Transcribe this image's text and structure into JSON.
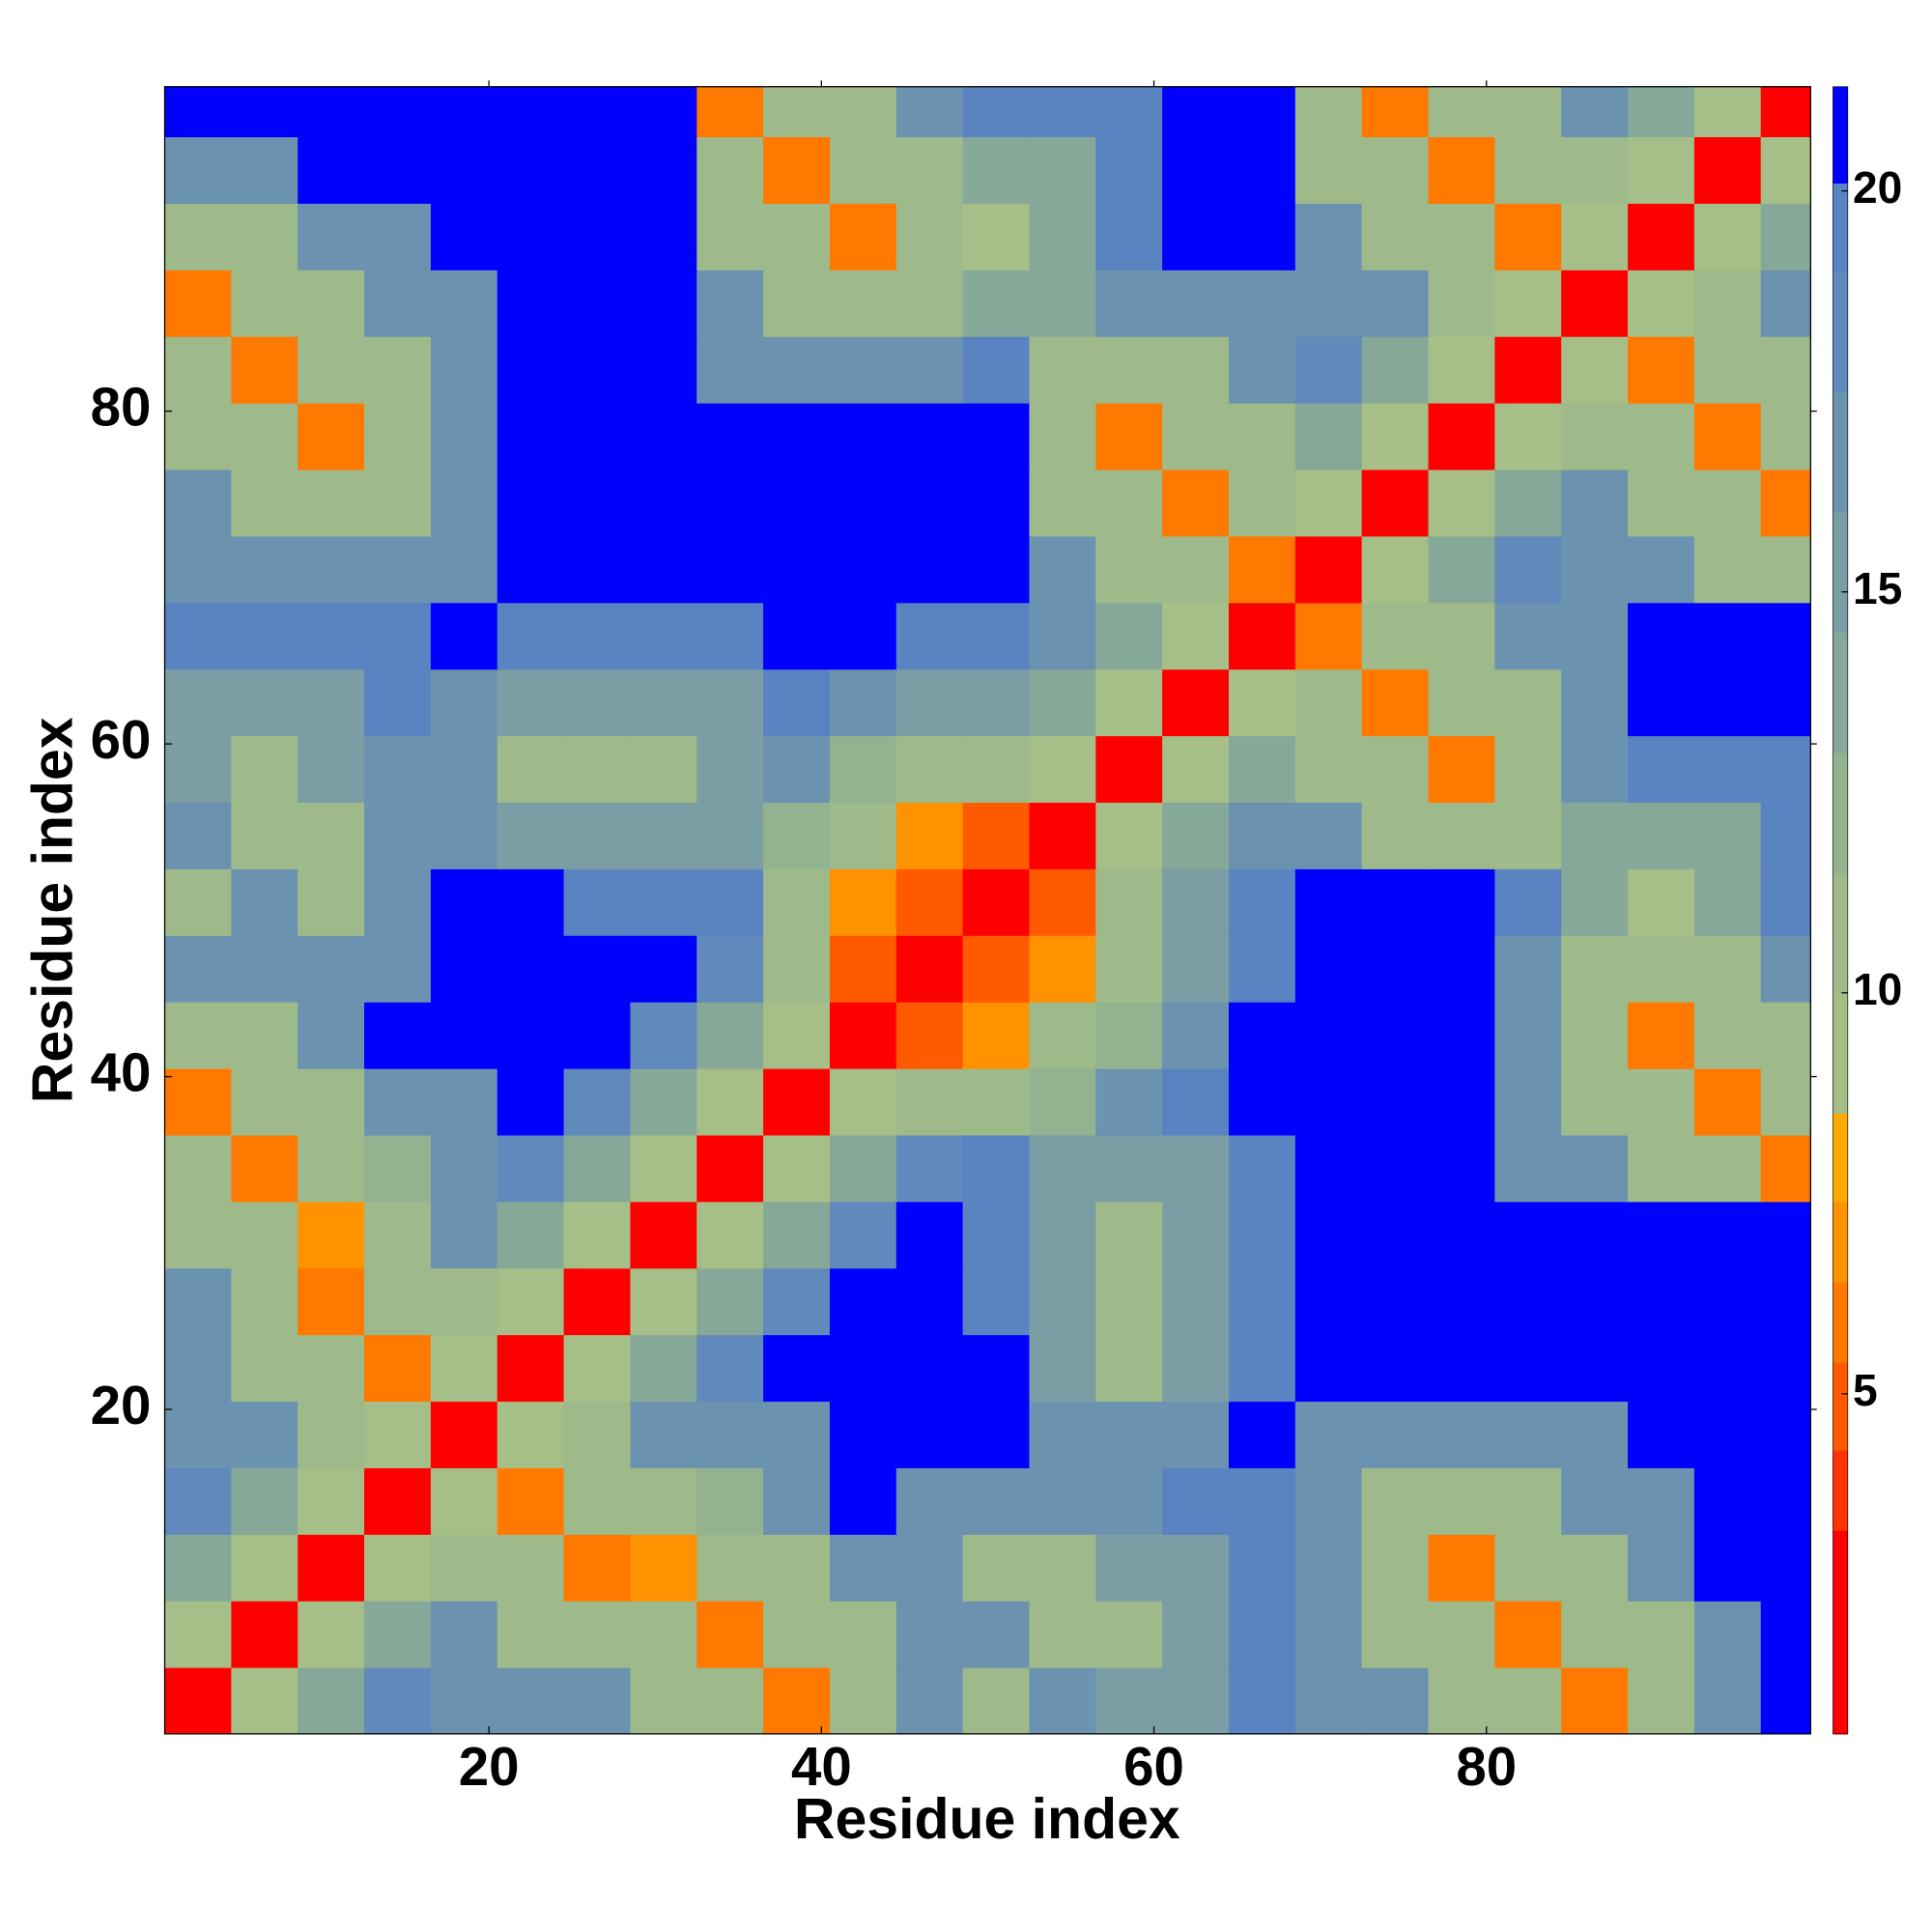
{
  "chart_data": {
    "type": "heatmap",
    "x_label": "Residue index",
    "y_label": "Residue index",
    "xlim": [
      0.5,
      99.5
    ],
    "ylim": [
      0.5,
      99.5
    ],
    "xticks": [
      20,
      40,
      60,
      80
    ],
    "yticks": [
      20,
      40,
      60,
      80
    ],
    "x_bins": [
      0.5,
      4.5,
      8.5,
      12.5,
      16.5,
      20.5,
      24.5,
      28.5,
      32.5,
      36.5,
      40.5,
      44.5,
      48.5,
      52.5,
      56.5,
      60.5,
      64.5,
      68.5,
      72.5,
      76.5,
      80.5,
      84.5,
      88.5,
      92.5,
      96.5,
      99.5
    ],
    "y_bins": [
      0.5,
      4.5,
      8.5,
      12.5,
      16.5,
      20.5,
      24.5,
      28.5,
      32.5,
      36.5,
      40.5,
      44.5,
      48.5,
      52.5,
      56.5,
      60.5,
      64.5,
      68.5,
      72.5,
      76.5,
      80.5,
      84.5,
      88.5,
      92.5,
      96.5,
      99.5
    ],
    "values": [
      [
        3,
        9,
        14,
        18,
        16,
        16,
        16,
        11,
        11,
        6,
        11,
        16,
        11,
        16,
        15,
        15,
        20,
        16,
        16,
        11,
        11,
        6,
        11,
        16,
        21
      ],
      [
        9,
        3,
        9,
        14,
        16,
        11,
        11,
        11,
        6,
        11,
        11,
        16,
        16,
        11,
        10,
        15,
        20,
        16,
        11,
        11,
        6,
        11,
        11,
        16,
        21
      ],
      [
        14,
        9,
        3,
        9,
        11,
        11,
        6,
        7,
        11,
        11,
        16,
        16,
        11,
        11,
        15,
        15,
        20,
        16,
        11,
        6,
        11,
        11,
        16,
        21,
        22
      ],
      [
        18,
        14,
        9,
        3,
        9,
        6,
        11,
        11,
        12,
        16,
        21,
        16,
        16,
        16,
        16,
        20,
        20,
        16,
        11,
        11,
        11,
        16,
        16,
        22,
        22
      ],
      [
        16,
        16,
        11,
        9,
        3,
        9,
        11,
        16,
        17,
        17,
        21,
        21,
        21,
        16,
        16,
        16,
        21,
        16,
        16,
        16,
        16,
        16,
        21,
        22,
        22
      ],
      [
        16,
        11,
        11,
        6,
        9,
        3,
        9,
        14,
        18,
        22,
        22,
        22,
        21,
        15,
        11,
        15,
        20,
        21,
        21,
        21,
        21,
        21,
        22,
        22,
        22
      ],
      [
        16,
        11,
        6,
        11,
        11,
        9,
        3,
        9,
        14,
        18,
        22,
        22,
        20,
        15,
        10,
        15,
        20,
        22,
        22,
        22,
        22,
        22,
        22,
        22,
        22
      ],
      [
        11,
        11,
        7,
        11,
        16,
        14,
        9,
        3,
        9,
        14,
        18,
        22,
        20,
        15,
        10,
        15,
        20,
        22,
        22,
        22,
        22,
        22,
        22,
        22,
        22
      ],
      [
        11,
        6,
        11,
        12,
        17,
        18,
        14,
        9,
        3,
        9,
        14,
        18,
        20,
        15,
        15,
        15,
        20,
        22,
        22,
        21,
        16,
        16,
        11,
        11,
        6
      ],
      [
        6,
        11,
        11,
        16,
        17,
        22,
        18,
        14,
        9,
        3,
        9,
        10,
        10,
        12,
        17,
        20,
        22,
        22,
        22,
        21,
        16,
        11,
        11,
        6,
        11
      ],
      [
        11,
        11,
        16,
        21,
        21,
        22,
        22,
        18,
        14,
        9,
        3,
        5,
        7,
        10,
        12,
        17,
        22,
        22,
        22,
        21,
        16,
        11,
        6,
        11,
        11
      ],
      [
        16,
        16,
        16,
        16,
        21,
        22,
        22,
        22,
        18,
        10,
        5,
        3,
        5,
        7,
        10,
        15,
        20,
        22,
        22,
        21,
        16,
        11,
        11,
        11,
        16
      ],
      [
        11,
        16,
        11,
        16,
        21,
        21,
        20,
        20,
        20,
        10,
        7,
        5,
        3,
        5,
        10,
        15,
        20,
        22,
        22,
        22,
        19,
        14,
        9,
        14,
        19
      ],
      [
        16,
        11,
        11,
        16,
        16,
        15,
        15,
        15,
        15,
        12,
        10,
        7,
        5,
        3,
        9,
        14,
        16,
        16,
        11,
        11,
        11,
        14,
        14,
        14,
        19
      ],
      [
        15,
        10,
        15,
        16,
        16,
        11,
        10,
        10,
        15,
        17,
        12,
        10,
        10,
        9,
        3,
        9,
        14,
        11,
        11,
        6,
        11,
        16,
        19,
        19,
        19
      ],
      [
        15,
        15,
        15,
        20,
        16,
        15,
        15,
        15,
        15,
        20,
        17,
        15,
        15,
        14,
        9,
        3,
        9,
        11,
        6,
        11,
        11,
        16,
        21,
        22,
        22
      ],
      [
        20,
        20,
        20,
        20,
        21,
        20,
        20,
        20,
        20,
        22,
        22,
        20,
        20,
        16,
        14,
        9,
        3,
        6,
        11,
        11,
        16,
        16,
        21,
        22,
        22
      ],
      [
        16,
        16,
        16,
        16,
        16,
        21,
        22,
        22,
        22,
        22,
        22,
        22,
        22,
        16,
        11,
        11,
        6,
        3,
        9,
        14,
        18,
        16,
        16,
        11,
        11
      ],
      [
        16,
        11,
        11,
        11,
        16,
        21,
        22,
        22,
        22,
        22,
        22,
        22,
        22,
        11,
        11,
        6,
        11,
        9,
        3,
        9,
        14,
        16,
        11,
        11,
        6
      ],
      [
        11,
        11,
        6,
        11,
        16,
        21,
        22,
        22,
        21,
        21,
        21,
        21,
        22,
        11,
        6,
        11,
        11,
        14,
        9,
        3,
        9,
        11,
        11,
        6,
        11
      ],
      [
        11,
        6,
        11,
        11,
        16,
        21,
        22,
        22,
        16,
        16,
        16,
        16,
        19,
        11,
        11,
        11,
        16,
        18,
        14,
        9,
        3,
        9,
        6,
        11,
        11
      ],
      [
        6,
        11,
        11,
        16,
        16,
        21,
        22,
        22,
        16,
        11,
        11,
        11,
        14,
        14,
        16,
        16,
        16,
        16,
        16,
        11,
        9,
        3,
        9,
        11,
        16
      ],
      [
        11,
        11,
        16,
        16,
        21,
        22,
        22,
        22,
        11,
        11,
        6,
        11,
        9,
        14,
        19,
        21,
        21,
        16,
        11,
        11,
        6,
        9,
        3,
        9,
        14
      ],
      [
        16,
        16,
        21,
        22,
        22,
        22,
        22,
        22,
        11,
        6,
        11,
        11,
        14,
        14,
        19,
        22,
        22,
        11,
        11,
        6,
        11,
        11,
        9,
        3,
        9
      ],
      [
        21,
        21,
        22,
        22,
        22,
        22,
        22,
        22,
        6,
        11,
        11,
        16,
        19,
        19,
        19,
        22,
        22,
        11,
        6,
        11,
        11,
        16,
        14,
        9,
        3
      ]
    ],
    "colorbar": {
      "lim": [
        0.76,
        21.3
      ],
      "ticks": [
        5,
        10,
        15,
        20
      ],
      "bounds": [
        0.76,
        3.3,
        4.3,
        5.4,
        6.4,
        7.4,
        8.5,
        10,
        11.5,
        13,
        14.5,
        16,
        17.5,
        19,
        20.1,
        21.3
      ],
      "colors": [
        "#ff0000",
        "#ff3300",
        "#ff5a00",
        "#ff7800",
        "#ff9200",
        "#ffaa00",
        "#a6bf88",
        "#9fba8a",
        "#93b290",
        "#86a898",
        "#7a9ea4",
        "#6b93b0",
        "#6189bb",
        "#5a83c2",
        "#0000ff"
      ]
    }
  }
}
